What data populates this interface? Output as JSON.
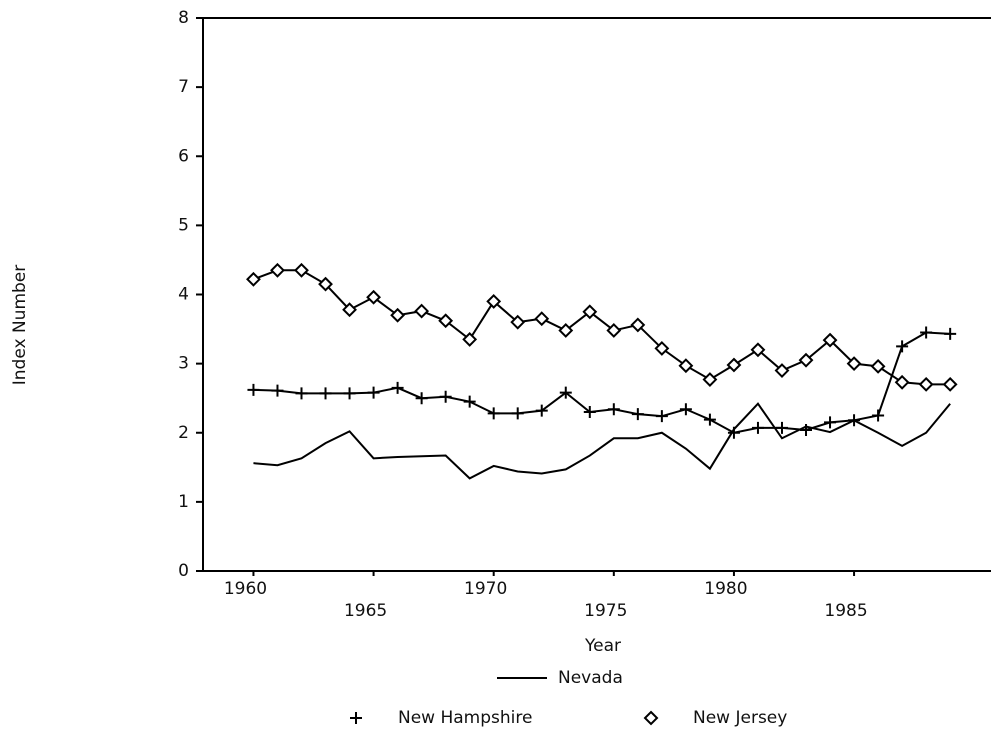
{
  "chart_data": {
    "type": "line",
    "xlabel": "Year",
    "ylabel": "Index Number",
    "x": [
      1960,
      1961,
      1962,
      1963,
      1964,
      1965,
      1966,
      1967,
      1968,
      1969,
      1970,
      1971,
      1972,
      1973,
      1974,
      1975,
      1976,
      1977,
      1978,
      1979,
      1980,
      1981,
      1982,
      1983,
      1984,
      1985,
      1986,
      1987,
      1988,
      1989
    ],
    "xlim": [
      1957.9,
      1990.7
    ],
    "xticks": [
      1960,
      1965,
      1970,
      1975,
      1980,
      1985
    ],
    "ylim": [
      0,
      8
    ],
    "yticks": [
      0,
      1,
      2,
      3,
      4,
      5,
      6,
      7,
      8
    ],
    "grid": false,
    "series": [
      {
        "name": "Nevada",
        "color": "#000000",
        "marker": "none",
        "values": [
          1.56,
          1.53,
          1.63,
          1.85,
          2.02,
          1.63,
          1.65,
          1.66,
          1.67,
          1.34,
          1.52,
          1.44,
          1.41,
          1.47,
          1.67,
          1.92,
          1.92,
          2.0,
          1.77,
          1.48,
          2.05,
          2.42,
          1.92,
          2.09,
          2.01,
          2.18,
          2.0,
          1.81,
          2.0,
          2.42
        ]
      },
      {
        "name": "New Hampshire",
        "color": "#000000",
        "marker": "plus",
        "values": [
          2.62,
          2.61,
          2.57,
          2.57,
          2.57,
          2.58,
          2.65,
          2.5,
          2.52,
          2.45,
          2.28,
          2.28,
          2.32,
          2.58,
          2.3,
          2.34,
          2.27,
          2.24,
          2.34,
          2.19,
          2.0,
          2.07,
          2.07,
          2.04,
          2.15,
          2.18,
          2.25,
          3.25,
          3.45,
          3.43
        ]
      },
      {
        "name": "New Jersey",
        "color": "#000000",
        "marker": "diamond",
        "values": [
          4.22,
          4.35,
          4.35,
          4.15,
          3.78,
          3.96,
          3.7,
          3.76,
          3.62,
          3.35,
          3.9,
          3.6,
          3.65,
          3.48,
          3.75,
          3.48,
          3.56,
          3.22,
          2.97,
          2.77,
          2.98,
          3.2,
          2.9,
          3.05,
          3.34,
          3.0,
          2.96,
          2.73,
          2.7,
          2.7
        ]
      }
    ]
  }
}
